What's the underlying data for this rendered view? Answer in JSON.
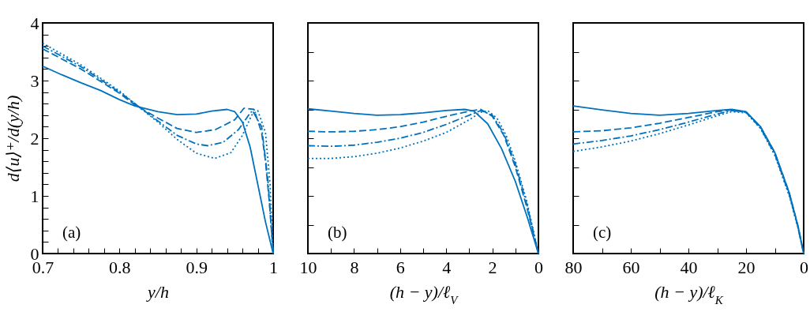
{
  "chart_data": [
    {
      "type": "line",
      "xlabel": "y/h",
      "ylabel": "d⟨u⟩⁺/d(y/h)",
      "annotations": [
        "(a)"
      ],
      "xlim": [
        0.7,
        1
      ],
      "ylim": [
        0,
        4
      ],
      "xticks": [
        {
          "value": 0.7,
          "label": "0.7"
        },
        {
          "value": 0.72,
          "label": null
        },
        {
          "value": 0.74,
          "label": null
        },
        {
          "value": 0.76,
          "label": null
        },
        {
          "value": 0.78,
          "label": null
        },
        {
          "value": 0.8,
          "label": "0.8"
        },
        {
          "value": 0.82,
          "label": null
        },
        {
          "value": 0.84,
          "label": null
        },
        {
          "value": 0.86,
          "label": null
        },
        {
          "value": 0.88,
          "label": null
        },
        {
          "value": 0.9,
          "label": "0.9"
        },
        {
          "value": 0.92,
          "label": null
        },
        {
          "value": 0.94,
          "label": null
        },
        {
          "value": 0.96,
          "label": null
        },
        {
          "value": 0.98,
          "label": null
        },
        1
      ],
      "yticks": [
        0,
        {
          "value": 0.2,
          "label": null
        },
        {
          "value": 0.4,
          "label": null
        },
        {
          "value": 0.6,
          "label": null
        },
        {
          "value": 0.8,
          "label": null
        },
        1,
        {
          "value": 1.2,
          "label": null
        },
        {
          "value": 1.4,
          "label": null
        },
        {
          "value": 1.6,
          "label": null
        },
        {
          "value": 1.8,
          "label": null
        },
        2,
        {
          "value": 2.2,
          "label": null
        },
        {
          "value": 2.4,
          "label": null
        },
        {
          "value": 2.6,
          "label": null
        },
        {
          "value": 2.8,
          "label": null
        },
        3,
        {
          "value": 3.2,
          "label": null
        },
        {
          "value": 3.4,
          "label": null
        },
        {
          "value": 3.6,
          "label": null
        },
        {
          "value": 3.8,
          "label": null
        },
        4
      ],
      "series": [
        {
          "color": "#0072bd",
          "line_style": "solid",
          "x": [
            0.7,
            0.725,
            0.75,
            0.775,
            0.8,
            0.82,
            0.85,
            0.875,
            0.9,
            0.92,
            0.94,
            0.95,
            0.96,
            0.97,
            0.98,
            0.99,
            1.0
          ],
          "values": [
            3.25,
            3.1,
            2.96,
            2.83,
            2.67,
            2.56,
            2.46,
            2.41,
            2.42,
            2.47,
            2.5,
            2.46,
            2.28,
            1.85,
            1.2,
            0.55,
            0
          ]
        },
        {
          "color": "#0072bd",
          "line_style": "dashed",
          "x": [
            0.7,
            0.75,
            0.8,
            0.82,
            0.85,
            0.875,
            0.9,
            0.925,
            0.95,
            0.962,
            0.975,
            0.985,
            0.99,
            0.995,
            1.0
          ],
          "values": [
            3.55,
            3.2,
            2.78,
            2.58,
            2.35,
            2.17,
            2.1,
            2.15,
            2.32,
            2.52,
            2.5,
            2.1,
            1.6,
            0.9,
            0
          ]
        },
        {
          "color": "#0072bd",
          "line_style": "dashdot",
          "x": [
            0.7,
            0.75,
            0.8,
            0.82,
            0.85,
            0.875,
            0.9,
            0.915,
            0.935,
            0.955,
            0.968,
            0.973,
            0.985,
            0.993,
            1.0
          ],
          "values": [
            3.6,
            3.24,
            2.8,
            2.6,
            2.3,
            2.05,
            1.9,
            1.87,
            1.93,
            2.15,
            2.4,
            2.48,
            2.2,
            1.3,
            0
          ]
        },
        {
          "color": "#0072bd",
          "line_style": "dotted",
          "x": [
            0.7,
            0.75,
            0.8,
            0.82,
            0.85,
            0.875,
            0.9,
            0.924,
            0.945,
            0.96,
            0.972,
            0.98,
            0.99,
            0.996,
            1.0
          ],
          "values": [
            3.65,
            3.27,
            2.82,
            2.6,
            2.28,
            1.98,
            1.74,
            1.65,
            1.75,
            2.05,
            2.4,
            2.48,
            2.1,
            1.2,
            0
          ]
        }
      ]
    },
    {
      "type": "line",
      "xlabel": "(h − y)/ℓ$_{V}$",
      "annotations": [
        "(b)"
      ],
      "xlim": [
        10,
        0
      ],
      "ylim": [
        0,
        4
      ],
      "tick_labels": "x",
      "xticks": [
        10,
        {
          "value": 9,
          "label": null
        },
        8,
        {
          "value": 7,
          "label": null
        },
        6,
        {
          "value": 5,
          "label": null
        },
        4,
        {
          "value": 3,
          "label": null
        },
        2,
        {
          "value": 1,
          "label": null
        },
        0
      ],
      "yticks": [
        {
          "value": 0,
          "label": null
        },
        {
          "value": 0.5,
          "label": null
        },
        {
          "value": 1,
          "label": null
        },
        {
          "value": 1.5,
          "label": null
        },
        {
          "value": 2,
          "label": null
        },
        {
          "value": 2.5,
          "label": null
        },
        {
          "value": 3,
          "label": null
        },
        {
          "value": 3.5,
          "label": null
        },
        {
          "value": 4,
          "label": null
        }
      ],
      "series": [
        {
          "color": "#0072bd",
          "line_style": "solid",
          "x": [
            10,
            9,
            8,
            7,
            6,
            5,
            4,
            3.2,
            2.8,
            2.2,
            1.6,
            1,
            0.5,
            0
          ],
          "values": [
            2.51,
            2.47,
            2.43,
            2.4,
            2.41,
            2.44,
            2.48,
            2.5,
            2.47,
            2.25,
            1.82,
            1.25,
            0.65,
            0
          ]
        },
        {
          "color": "#0072bd",
          "line_style": "dashed",
          "x": [
            10,
            9,
            8,
            7,
            6,
            5,
            4,
            3,
            2.5,
            2,
            1.5,
            1,
            0.5,
            0
          ],
          "values": [
            2.12,
            2.11,
            2.12,
            2.15,
            2.2,
            2.28,
            2.38,
            2.47,
            2.5,
            2.38,
            2.05,
            1.5,
            0.8,
            0
          ]
        },
        {
          "color": "#0072bd",
          "line_style": "dashdot",
          "x": [
            10,
            9,
            8,
            7,
            6,
            5,
            4,
            3,
            2.5,
            2,
            1.5,
            1,
            0.5,
            0
          ],
          "values": [
            1.87,
            1.86,
            1.88,
            1.93,
            2.0,
            2.1,
            2.24,
            2.4,
            2.48,
            2.4,
            2.08,
            1.55,
            0.85,
            0
          ]
        },
        {
          "color": "#0072bd",
          "line_style": "dotted",
          "x": [
            10,
            9,
            8,
            7,
            6,
            5,
            4,
            3,
            2.5,
            2.2,
            1.8,
            1.4,
            1,
            0.5,
            0
          ],
          "values": [
            1.65,
            1.65,
            1.68,
            1.74,
            1.83,
            1.95,
            2.1,
            2.32,
            2.45,
            2.48,
            2.35,
            2.05,
            1.6,
            0.9,
            0
          ]
        }
      ]
    },
    {
      "type": "line",
      "xlabel": "(h − y)/ℓ$_{K}$",
      "annotations": [
        "(c)"
      ],
      "xlim": [
        80,
        0
      ],
      "ylim": [
        0,
        4
      ],
      "tick_labels": "x",
      "xticks": [
        80,
        {
          "value": 70,
          "label": null
        },
        60,
        {
          "value": 50,
          "label": null
        },
        40,
        {
          "value": 30,
          "label": null
        },
        20,
        {
          "value": 10,
          "label": null
        },
        0
      ],
      "yticks": [
        {
          "value": 0,
          "label": null
        },
        {
          "value": 0.5,
          "label": null
        },
        {
          "value": 1,
          "label": null
        },
        {
          "value": 1.5,
          "label": null
        },
        {
          "value": 2,
          "label": null
        },
        {
          "value": 2.5,
          "label": null
        },
        {
          "value": 3,
          "label": null
        },
        {
          "value": 3.5,
          "label": null
        },
        {
          "value": 4,
          "label": null
        }
      ],
      "series": [
        {
          "color": "#0072bd",
          "line_style": "solid",
          "x": [
            80,
            70,
            60,
            50,
            40,
            30,
            25,
            20,
            15,
            10,
            5,
            2,
            0
          ],
          "values": [
            2.56,
            2.49,
            2.43,
            2.4,
            2.43,
            2.48,
            2.5,
            2.46,
            2.2,
            1.75,
            1.05,
            0.48,
            0
          ]
        },
        {
          "color": "#0072bd",
          "line_style": "dashed",
          "x": [
            80,
            70,
            60,
            50,
            40,
            30,
            25,
            20,
            15,
            10,
            5,
            2,
            0
          ],
          "values": [
            2.11,
            2.13,
            2.18,
            2.26,
            2.36,
            2.46,
            2.49,
            2.45,
            2.2,
            1.75,
            1.05,
            0.48,
            0
          ]
        },
        {
          "color": "#0072bd",
          "line_style": "dashdot",
          "x": [
            80,
            70,
            60,
            50,
            40,
            30,
            25,
            20,
            15,
            10,
            5,
            2,
            0
          ],
          "values": [
            1.9,
            1.96,
            2.04,
            2.15,
            2.28,
            2.42,
            2.48,
            2.45,
            2.18,
            1.72,
            1.02,
            0.46,
            0
          ]
        },
        {
          "color": "#0072bd",
          "line_style": "dotted",
          "x": [
            80,
            70,
            60,
            50,
            40,
            30,
            25,
            20,
            15,
            10,
            5,
            2,
            0
          ],
          "values": [
            1.77,
            1.85,
            1.95,
            2.08,
            2.23,
            2.39,
            2.46,
            2.44,
            2.17,
            1.7,
            1.0,
            0.45,
            0
          ]
        }
      ]
    }
  ]
}
